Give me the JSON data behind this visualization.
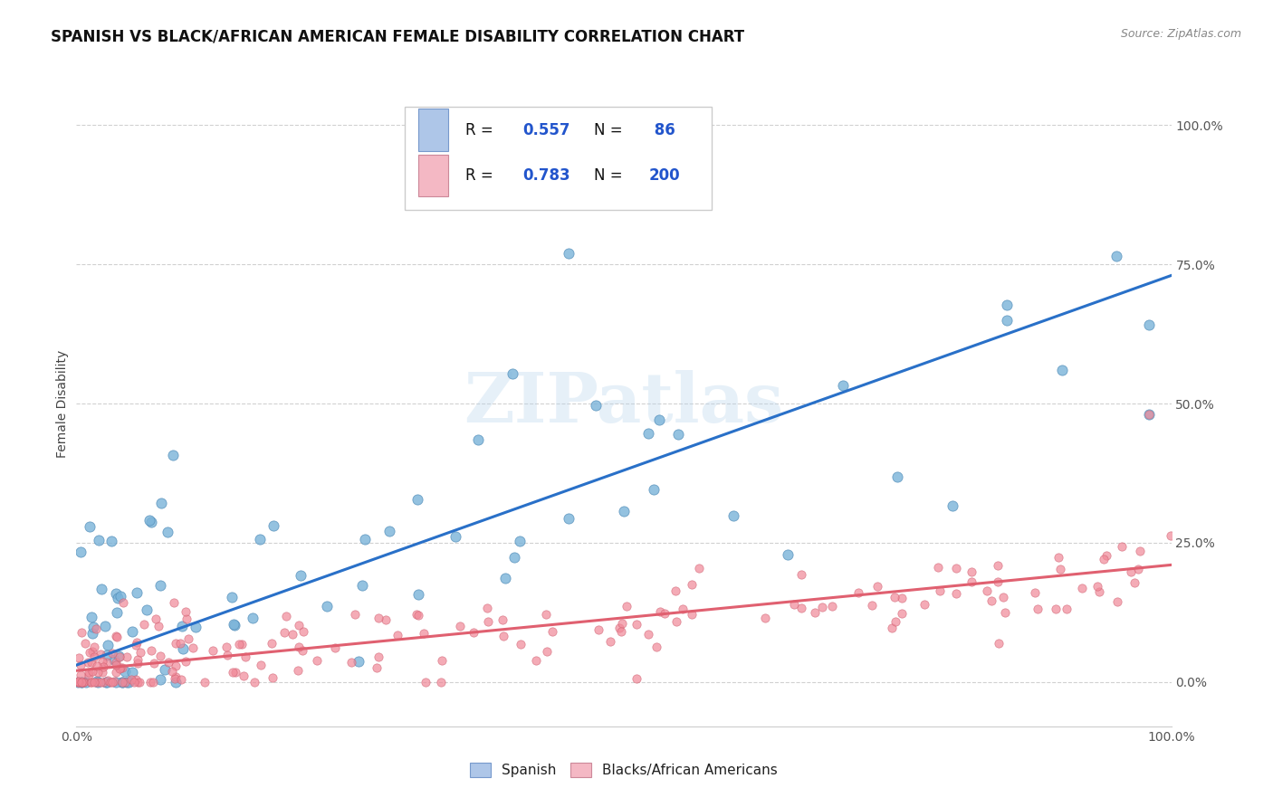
{
  "title": "SPANISH VS BLACK/AFRICAN AMERICAN FEMALE DISABILITY CORRELATION CHART",
  "source": "Source: ZipAtlas.com",
  "ylabel": "Female Disability",
  "legend_blue_R": "0.557",
  "legend_blue_N": "86",
  "legend_pink_R": "0.783",
  "legend_pink_N": "200",
  "scatter_blue_color": "#7ab3d9",
  "scatter_blue_edge": "#5590bb",
  "scatter_pink_color": "#f08898",
  "scatter_pink_edge": "#d06070",
  "line_blue_color": "#2970c8",
  "line_pink_color": "#e06070",
  "legend_blue_color": "#aec6e8",
  "legend_blue_edge": "#7799cc",
  "legend_pink_color": "#f4b8c4",
  "legend_pink_edge": "#cc8899",
  "stat_color": "#2255cc",
  "stat_label_color": "#111111",
  "watermark_color": "#b8d4ec",
  "watermark_text": "ZIPatlas",
  "grid_color": "#cccccc",
  "title_color": "#111111",
  "source_color": "#888888",
  "ylabel_color": "#444444",
  "tick_color": "#555555",
  "xlim": [
    0,
    100
  ],
  "ylim": [
    -8,
    108
  ],
  "ytick_values": [
    0,
    25,
    50,
    75,
    100
  ],
  "ytick_labels": [
    "0.0%",
    "25.0%",
    "50.0%",
    "75.0%",
    "100.0%"
  ],
  "xtick_values": [
    0,
    100
  ],
  "xtick_labels": [
    "0.0%",
    "100.0%"
  ],
  "blue_line_x0": 0,
  "blue_line_x1": 100,
  "blue_line_y0": 3,
  "blue_line_y1": 73,
  "pink_line_x0": 0,
  "pink_line_x1": 100,
  "pink_line_y0": 2,
  "pink_line_y1": 21,
  "title_fontsize": 12,
  "source_fontsize": 9,
  "ylabel_fontsize": 10,
  "tick_fontsize": 10,
  "legend_fontsize": 12,
  "watermark_fontsize": 55,
  "bottom_legend_label1": "Spanish",
  "bottom_legend_label2": "Blacks/African Americans"
}
